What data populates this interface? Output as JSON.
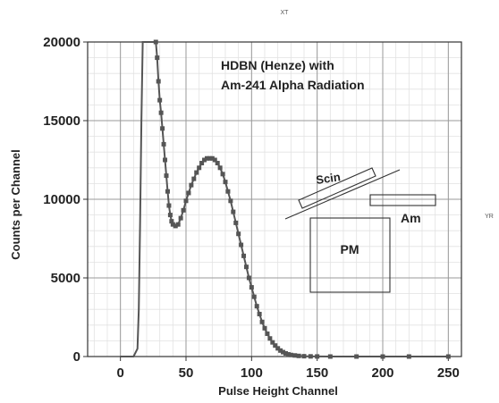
{
  "chart_data": {
    "type": "scatter",
    "title": "HDBN (Henze) with Am-241 Alpha Radiation",
    "title_lines": [
      "HDBN (Henze) with",
      "Am-241 Alpha Radiation"
    ],
    "xlabel": "Pulse Height Channel",
    "ylabel": "Counts per Channel",
    "xlim": [
      -25,
      260
    ],
    "ylim": [
      0,
      20000
    ],
    "xticks": [
      0,
      50,
      100,
      150,
      200,
      250
    ],
    "yticks": [
      0,
      5000,
      10000,
      15000,
      20000
    ],
    "grid": true,
    "corner_labels": {
      "top": "XT",
      "right": "YR"
    },
    "series": [
      {
        "color": "#555555",
        "points": [
          [
            0,
            0
          ],
          [
            5,
            0
          ],
          [
            10,
            0
          ],
          [
            13,
            500
          ],
          [
            14,
            3000
          ],
          [
            15,
            8500
          ],
          [
            16,
            15000
          ],
          [
            17,
            20000
          ],
          [
            27,
            20000
          ],
          [
            28,
            19000
          ],
          [
            29,
            17500
          ],
          [
            30,
            16300
          ],
          [
            31,
            15500
          ],
          [
            32,
            14500
          ],
          [
            33,
            13500
          ],
          [
            34,
            12500
          ],
          [
            35,
            11500
          ],
          [
            36,
            10500
          ],
          [
            37,
            9600
          ],
          [
            38,
            9000
          ],
          [
            39,
            8600
          ],
          [
            40,
            8400
          ],
          [
            42,
            8300
          ],
          [
            44,
            8400
          ],
          [
            46,
            8800
          ],
          [
            48,
            9300
          ],
          [
            50,
            9900
          ],
          [
            52,
            10400
          ],
          [
            54,
            10900
          ],
          [
            56,
            11300
          ],
          [
            58,
            11700
          ],
          [
            60,
            12000
          ],
          [
            62,
            12300
          ],
          [
            64,
            12500
          ],
          [
            66,
            12600
          ],
          [
            68,
            12600
          ],
          [
            70,
            12600
          ],
          [
            72,
            12500
          ],
          [
            74,
            12300
          ],
          [
            76,
            12000
          ],
          [
            78,
            11600
          ],
          [
            80,
            11100
          ],
          [
            82,
            10500
          ],
          [
            84,
            9900
          ],
          [
            86,
            9200
          ],
          [
            88,
            8500
          ],
          [
            90,
            7800
          ],
          [
            92,
            7100
          ],
          [
            94,
            6400
          ],
          [
            96,
            5700
          ],
          [
            98,
            5000
          ],
          [
            100,
            4400
          ],
          [
            102,
            3800
          ],
          [
            104,
            3200
          ],
          [
            106,
            2700
          ],
          [
            108,
            2200
          ],
          [
            110,
            1800
          ],
          [
            112,
            1450
          ],
          [
            114,
            1150
          ],
          [
            116,
            900
          ],
          [
            118,
            700
          ],
          [
            120,
            520
          ],
          [
            122,
            380
          ],
          [
            124,
            280
          ],
          [
            126,
            200
          ],
          [
            128,
            140
          ],
          [
            130,
            100
          ],
          [
            133,
            70
          ],
          [
            136,
            40
          ],
          [
            140,
            20
          ],
          [
            145,
            10
          ],
          [
            150,
            5
          ],
          [
            160,
            0
          ],
          [
            180,
            0
          ],
          [
            200,
            0
          ],
          [
            220,
            0
          ],
          [
            250,
            0
          ]
        ]
      }
    ]
  },
  "diagram": {
    "scin_label": "Scin",
    "am_label": "Am",
    "pm_label": "PM"
  }
}
